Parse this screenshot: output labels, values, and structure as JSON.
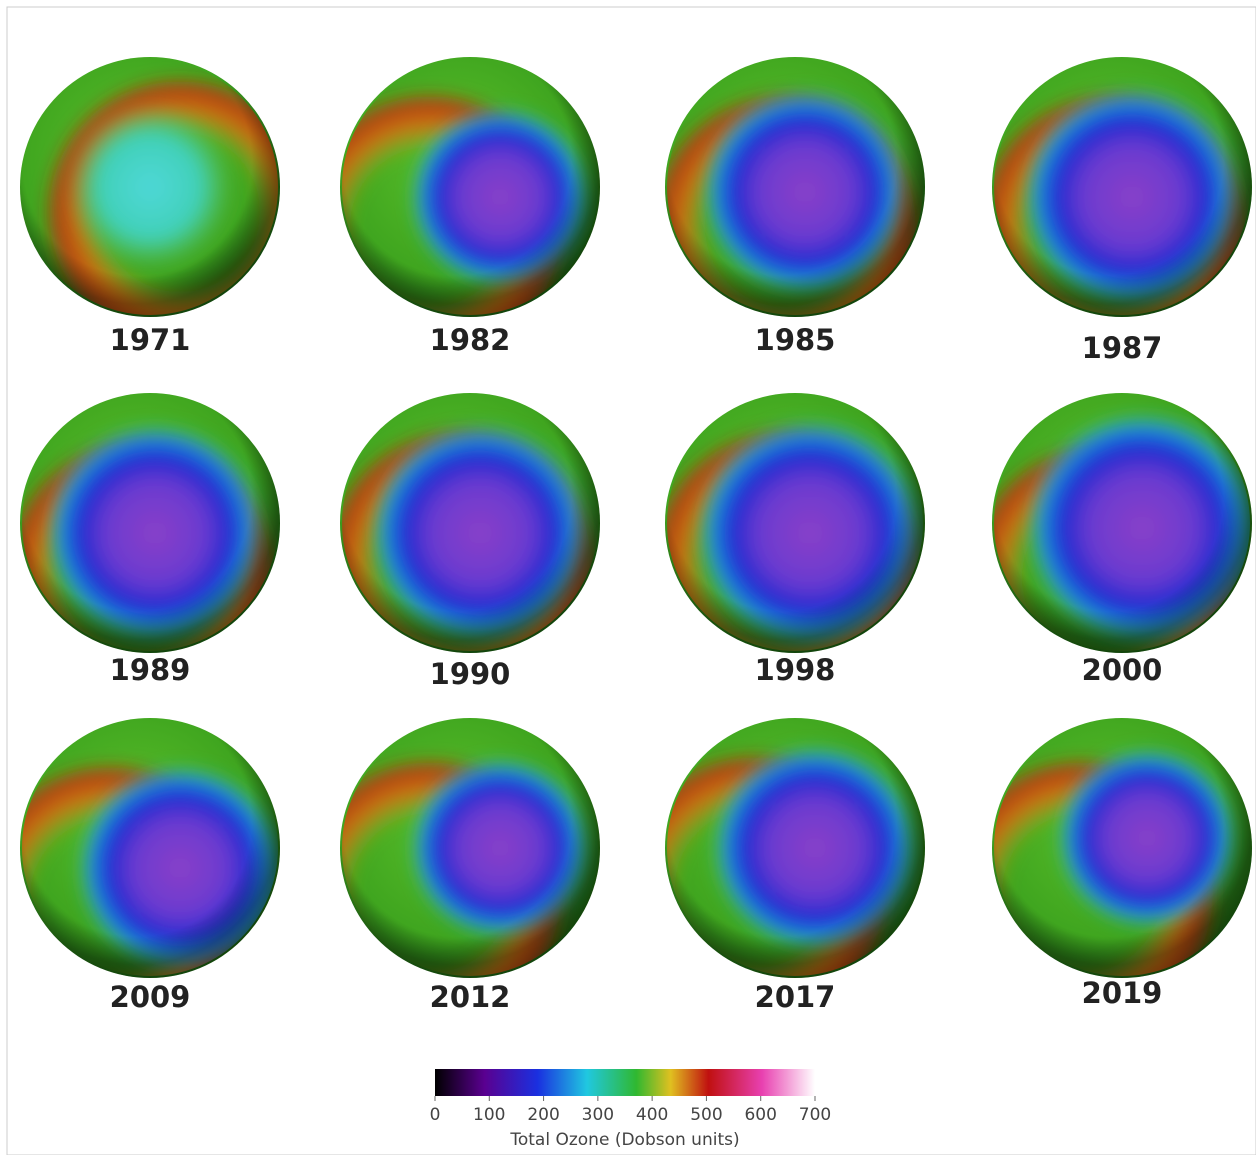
{
  "panels": [
    {
      "year": "1971"
    },
    {
      "year": "1982"
    },
    {
      "year": "1985"
    },
    {
      "year": "1987"
    },
    {
      "year": "1989"
    },
    {
      "year": "1990"
    },
    {
      "year": "1998"
    },
    {
      "year": "2000"
    },
    {
      "year": "2009"
    },
    {
      "year": "2012"
    },
    {
      "year": "2017"
    },
    {
      "year": "2019"
    }
  ],
  "colorbar": {
    "label": "Total Ozone (Dobson units)",
    "range": [
      0,
      700
    ],
    "ticks": [
      0,
      100,
      200,
      300,
      400,
      500,
      600,
      700
    ]
  }
}
